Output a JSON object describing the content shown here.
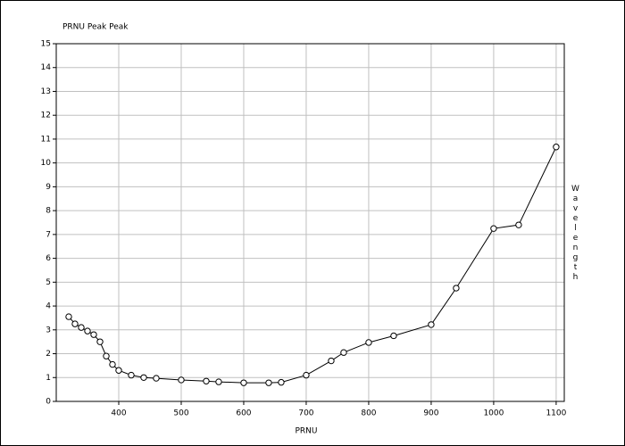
{
  "chart_data": {
    "type": "line",
    "title": "PRNU Peak Peak",
    "x_label": "PRNU",
    "y2_label": "Wavelength",
    "x": [
      320,
      330,
      340,
      350,
      360,
      370,
      380,
      390,
      400,
      420,
      440,
      460,
      500,
      540,
      560,
      600,
      640,
      660,
      700,
      740,
      760,
      800,
      840,
      900,
      940,
      1000,
      1040,
      1100
    ],
    "series": [
      {
        "color": "#000000",
        "values": [
          3.55,
          3.25,
          3.1,
          2.95,
          2.8,
          2.5,
          1.9,
          1.55,
          1.3,
          1.1,
          1.0,
          0.97,
          0.9,
          0.85,
          0.82,
          0.78,
          0.78,
          0.8,
          1.1,
          1.7,
          2.05,
          2.47,
          2.75,
          3.22,
          4.75,
          7.25,
          7.4,
          10.67
        ]
      }
    ],
    "xlim": [
      300,
      1113
    ],
    "xticks": [
      400,
      500,
      600,
      700,
      800,
      900,
      1000,
      1100
    ],
    "ylim": [
      0,
      15
    ],
    "yticks": [
      0,
      1,
      2,
      3,
      4,
      5,
      6,
      7,
      8,
      9,
      10,
      11,
      12,
      13,
      14,
      15
    ],
    "grid": true,
    "marker": "open-circle"
  }
}
